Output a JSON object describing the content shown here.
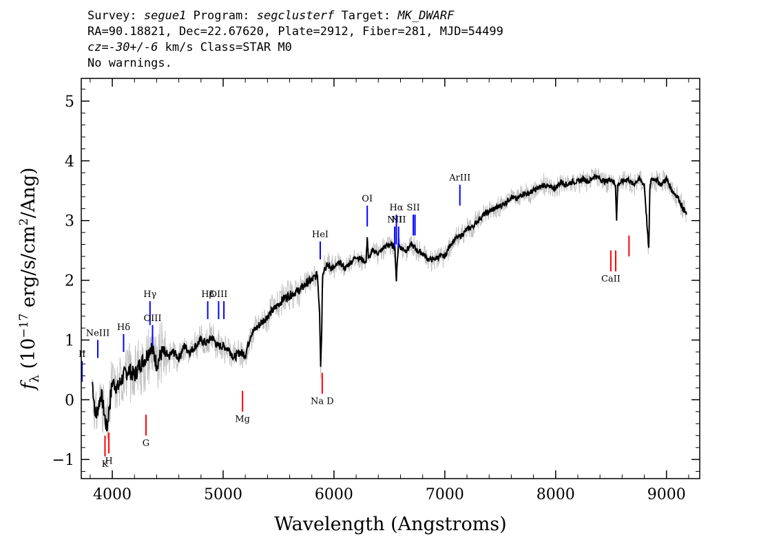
{
  "header": {
    "survey_label": "Survey:",
    "survey": "segue1",
    "program_label": "Program:",
    "program": "segclusterf",
    "target_label": "Target:",
    "target": "MK_DWARF",
    "line2": "RA=90.18821, Dec=22.67620, Plate=2912, Fiber=281, MJD=54499",
    "cz_label": "cz",
    "cz_value": "=-30+/-6",
    "cz_rest": " km/s Class=STAR M0",
    "warnings": "No warnings."
  },
  "chart_data": {
    "type": "line",
    "xlabel": "Wavelength (Angstroms)",
    "ylabel": "f_λ (10^-17 erg/s/cm^2/Ang)",
    "xlim": [
      3720,
      9300
    ],
    "ylim": [
      -1.32,
      5.38
    ],
    "xticks": [
      4000,
      5000,
      6000,
      7000,
      8000,
      9000
    ],
    "yticks": [
      -1,
      0,
      1,
      2,
      3,
      4,
      5
    ],
    "colors": {
      "flux": "#000000",
      "noise": "#c0c0c0",
      "emission": "#0000ff",
      "absorption": "#ff0000"
    },
    "series": [
      {
        "x": [
          3820,
          3850,
          3900,
          3950,
          4000,
          4050,
          4100,
          4150,
          4200,
          4250,
          4300,
          4350,
          4400,
          4450,
          4500,
          4550,
          4600,
          4650,
          4700,
          4750,
          4800,
          4850,
          4900,
          4950,
          5000,
          5050,
          5100,
          5150,
          5200,
          5250,
          5300,
          5350,
          5400,
          5450,
          5500,
          5550,
          5600,
          5650,
          5700,
          5750,
          5800,
          5850,
          5870,
          5880,
          5890,
          5895,
          5900,
          5910,
          5950,
          6000,
          6050,
          6100,
          6150,
          6200,
          6250,
          6290,
          6300,
          6310,
          6350,
          6400,
          6450,
          6500,
          6550,
          6563,
          6580,
          6600,
          6650,
          6700,
          6750,
          6800,
          6850,
          6900,
          6950,
          7000,
          7050,
          7100,
          7150,
          7200,
          7250,
          7300,
          7350,
          7400,
          7450,
          7500,
          7550,
          7600,
          7650,
          7700,
          7750,
          7800,
          7850,
          7900,
          7950,
          8000,
          8050,
          8100,
          8150,
          8200,
          8250,
          8300,
          8350,
          8400,
          8450,
          8500,
          8540,
          8550,
          8560,
          8600,
          8650,
          8700,
          8750,
          8800,
          8840,
          8850,
          8860,
          8900,
          8950,
          9000,
          9050,
          9100,
          9150,
          9180
        ],
        "y": [
          0.3,
          -0.3,
          0.1,
          -0.5,
          0.3,
          0.2,
          0.4,
          0.5,
          0.4,
          0.6,
          0.7,
          0.9,
          0.6,
          0.8,
          0.7,
          0.8,
          0.7,
          0.9,
          0.8,
          0.9,
          1.0,
          0.95,
          1.05,
          0.9,
          0.9,
          0.85,
          0.7,
          0.8,
          0.75,
          1.1,
          1.2,
          1.3,
          1.4,
          1.5,
          1.6,
          1.7,
          1.75,
          1.8,
          1.85,
          1.95,
          2.0,
          2.1,
          1.5,
          0.6,
          1.2,
          1.9,
          2.15,
          2.2,
          2.25,
          2.2,
          2.3,
          2.2,
          2.3,
          2.4,
          2.35,
          2.3,
          2.75,
          2.35,
          2.5,
          2.45,
          2.55,
          2.6,
          2.55,
          2.0,
          2.6,
          2.55,
          2.5,
          2.6,
          2.5,
          2.45,
          2.35,
          2.35,
          2.4,
          2.4,
          2.6,
          2.7,
          2.75,
          2.85,
          2.9,
          3.0,
          3.1,
          3.15,
          3.2,
          3.25,
          3.3,
          3.4,
          3.35,
          3.45,
          3.45,
          3.5,
          3.55,
          3.6,
          3.55,
          3.55,
          3.65,
          3.6,
          3.65,
          3.65,
          3.7,
          3.65,
          3.75,
          3.7,
          3.65,
          3.7,
          3.6,
          3.0,
          3.6,
          3.65,
          3.7,
          3.6,
          3.7,
          3.6,
          2.5,
          3.5,
          3.7,
          3.7,
          3.6,
          3.7,
          3.5,
          3.4,
          3.2,
          3.1
        ]
      }
    ],
    "emission_lines": [
      {
        "label": "II",
        "x": 3727,
        "y_bottom": 0.3,
        "y_top": 0.65
      },
      {
        "label": "NeIII",
        "x": 3869,
        "y_bottom": 0.7,
        "y_top": 1.0
      },
      {
        "label": "Hδ",
        "x": 4102,
        "y_bottom": 0.8,
        "y_top": 1.1
      },
      {
        "label": "Hγ",
        "x": 4340,
        "y_bottom": 1.25,
        "y_top": 1.65
      },
      {
        "label": "OIII",
        "x": 4363,
        "y_bottom": 0.9,
        "y_top": 1.25
      },
      {
        "label": "Hβ",
        "x": 4861,
        "y_bottom": 1.35,
        "y_top": 1.65
      },
      {
        "label": "OIII",
        "x": 4959,
        "y_bottom": 1.35,
        "y_top": 1.65
      },
      {
        "label": "",
        "x": 5007,
        "y_bottom": 1.35,
        "y_top": 1.65
      },
      {
        "label": "HeI",
        "x": 5876,
        "y_bottom": 2.35,
        "y_top": 2.65
      },
      {
        "label": "OI",
        "x": 6300,
        "y_bottom": 2.9,
        "y_top": 3.25
      },
      {
        "label": "NII",
        "x": 6548,
        "y_bottom": 2.55,
        "y_top": 2.9
      },
      {
        "label": "Hα",
        "x": 6563,
        "y_bottom": 2.6,
        "y_top": 3.1
      },
      {
        "label": "NII",
        "x": 6583,
        "y_bottom": 2.55,
        "y_top": 2.9
      },
      {
        "label": "SII",
        "x": 6716,
        "y_bottom": 2.75,
        "y_top": 3.1
      },
      {
        "label": "",
        "x": 6731,
        "y_bottom": 2.75,
        "y_top": 3.1
      },
      {
        "label": "ArIII",
        "x": 7136,
        "y_bottom": 3.25,
        "y_top": 3.6
      }
    ],
    "absorption_lines": [
      {
        "label": "K",
        "x": 3934,
        "y_bottom": -0.95,
        "y_top": -0.6
      },
      {
        "label": "H",
        "x": 3969,
        "y_bottom": -0.9,
        "y_top": -0.55
      },
      {
        "label": "G",
        "x": 4304,
        "y_bottom": -0.6,
        "y_top": -0.25
      },
      {
        "label": "Mg",
        "x": 5175,
        "y_bottom": -0.2,
        "y_top": 0.15
      },
      {
        "label": "Na D",
        "x": 5894,
        "y_bottom": 0.1,
        "y_top": 0.45
      },
      {
        "label": "CaII",
        "x": 8498,
        "y_bottom": 2.15,
        "y_top": 2.5
      },
      {
        "label": "",
        "x": 8542,
        "y_bottom": 2.15,
        "y_top": 2.5
      },
      {
        "label": "",
        "x": 8662,
        "y_bottom": 2.4,
        "y_top": 2.75
      }
    ]
  }
}
